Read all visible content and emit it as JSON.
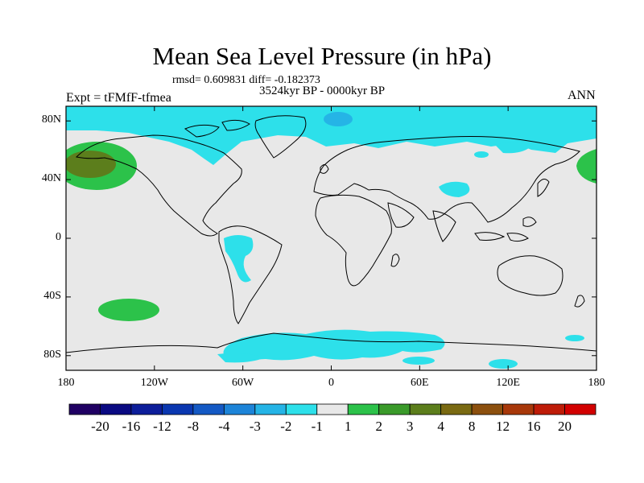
{
  "title": "Mean Sea Level Pressure (in hPa)",
  "stats": "rmsd= 0.609831 diff= -0.182373",
  "period": "3524kyr BP - 0000kyr BP",
  "experiment": "Expt = tFMfF-tfmea",
  "season": "ANN",
  "lat_ticks": [
    {
      "label": "80N",
      "value": 80
    },
    {
      "label": "40N",
      "value": 40
    },
    {
      "label": "0",
      "value": 0
    },
    {
      "label": "40S",
      "value": -40
    },
    {
      "label": "80S",
      "value": -80
    }
  ],
  "lon_ticks": [
    {
      "label": "180",
      "value": -180
    },
    {
      "label": "120W",
      "value": -120
    },
    {
      "label": "60W",
      "value": -60
    },
    {
      "label": "0",
      "value": 0
    },
    {
      "label": "60E",
      "value": 60
    },
    {
      "label": "120E",
      "value": 120
    },
    {
      "label": "180",
      "value": 180
    }
  ],
  "colorbar": {
    "colors": [
      "#200063",
      "#0a0a82",
      "#0d1e9a",
      "#0a37b0",
      "#1459c4",
      "#1d84d8",
      "#25b4e6",
      "#2de0ea",
      "#e8e8e8",
      "#2cc24a",
      "#3a9a2a",
      "#5c7e1c",
      "#7a6a12",
      "#8c500e",
      "#a8380a",
      "#be1c08",
      "#d20000"
    ],
    "labels": [
      "-20",
      "-16",
      "-12",
      "-8",
      "-4",
      "-3",
      "-2",
      "-1",
      "1",
      "2",
      "3",
      "4",
      "8",
      "12",
      "16",
      "20"
    ]
  },
  "colors": {
    "neutral": "#e8e8e8",
    "negative_light": "#2de0ea",
    "negative_mid": "#25b4e6",
    "positive_light": "#2cc24a",
    "positive_mid": "#5c7e1c"
  }
}
